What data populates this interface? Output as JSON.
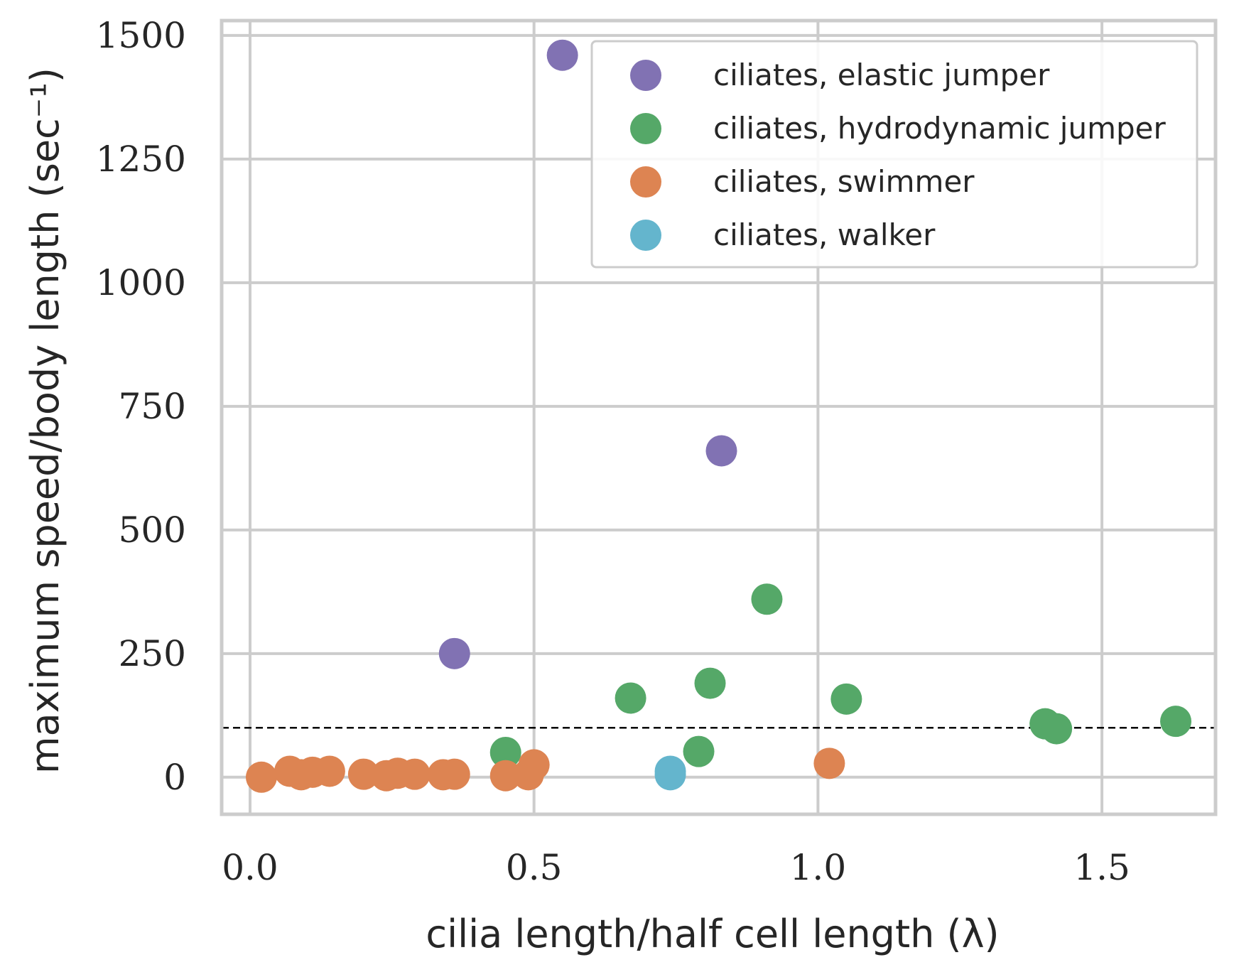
{
  "chart_data": {
    "type": "scatter",
    "title": "",
    "xlabel": "cilia length/half cell length (λ)",
    "ylabel": "maximum speed/body length (sec⁻¹)",
    "xlim": [
      -0.05,
      1.7
    ],
    "ylim": [
      -75,
      1530
    ],
    "xticks": [
      0.0,
      0.5,
      1.0,
      1.5
    ],
    "xtick_labels": [
      "0.0",
      "0.5",
      "1.0",
      "1.5"
    ],
    "yticks": [
      0,
      250,
      500,
      750,
      1000,
      1250,
      1500
    ],
    "ytick_labels": [
      "0",
      "250",
      "500",
      "750",
      "1000",
      "1250",
      "1500"
    ],
    "grid": true,
    "legend_position": "top-right",
    "reference_line": {
      "y": 100,
      "style": "dashed",
      "color": "#000000"
    },
    "series": [
      {
        "name": "ciliates, elastic jumper",
        "color": "#8172b3",
        "points": [
          [
            0.55,
            1460
          ],
          [
            0.36,
            250
          ],
          [
            0.83,
            660
          ]
        ]
      },
      {
        "name": "ciliates, hydrodynamic jumper",
        "color": "#55a868",
        "points": [
          [
            0.91,
            360
          ],
          [
            0.81,
            190
          ],
          [
            0.67,
            160
          ],
          [
            1.05,
            158
          ],
          [
            1.4,
            108
          ],
          [
            1.42,
            98
          ],
          [
            1.63,
            113
          ],
          [
            0.79,
            52
          ],
          [
            0.45,
            50
          ]
        ]
      },
      {
        "name": "ciliates, swimmer",
        "color": "#dd8452",
        "points": [
          [
            0.02,
            0
          ],
          [
            0.07,
            12
          ],
          [
            0.09,
            5
          ],
          [
            0.11,
            10
          ],
          [
            0.14,
            12
          ],
          [
            0.2,
            6
          ],
          [
            0.24,
            3
          ],
          [
            0.26,
            8
          ],
          [
            0.29,
            6
          ],
          [
            0.34,
            5
          ],
          [
            0.36,
            6
          ],
          [
            0.45,
            3
          ],
          [
            0.49,
            5
          ],
          [
            0.5,
            25
          ],
          [
            1.02,
            28
          ]
        ]
      },
      {
        "name": "ciliates, walker",
        "color": "#64b5cd",
        "points": [
          [
            0.74,
            5
          ],
          [
            0.74,
            12
          ]
        ]
      }
    ]
  }
}
